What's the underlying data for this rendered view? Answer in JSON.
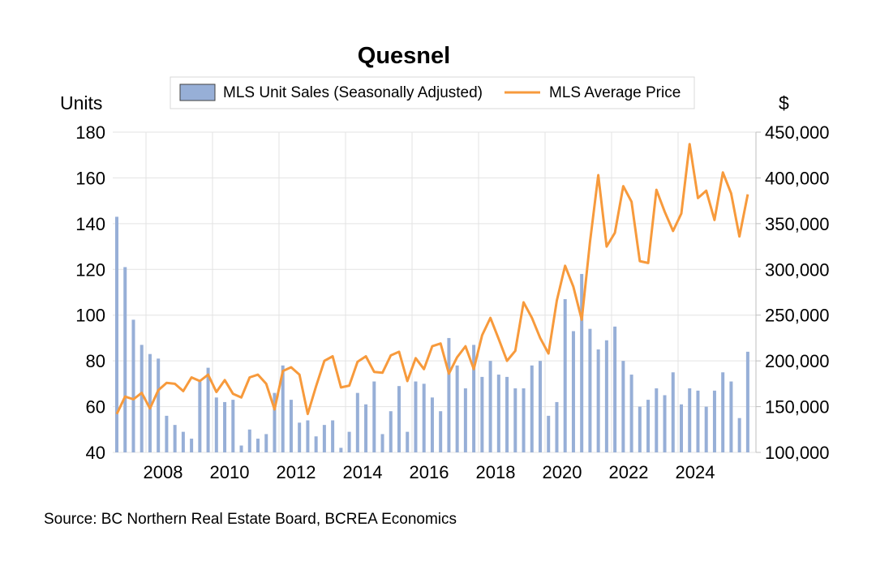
{
  "chart_data": {
    "type": "bar+line",
    "title": "Quesnel",
    "left_axis_label": "Units",
    "right_axis_label": "$",
    "left_ylim": [
      40,
      180
    ],
    "left_ticks": [
      "180",
      "160",
      "140",
      "120",
      "100",
      "80",
      "60",
      "40"
    ],
    "right_ylim": [
      100000,
      450000
    ],
    "right_ticks": [
      "450,000",
      "400,000",
      "350,000",
      "300,000",
      "250,000",
      "200,000",
      "150,000",
      "100,000"
    ],
    "x_tick_labels": [
      "2008",
      "2010",
      "2012",
      "2014",
      "2016",
      "2018",
      "2020",
      "2022",
      "2024"
    ],
    "grid": true,
    "legend": "top-center",
    "series": [
      {
        "name": "MLS Unit Sales (Seasonally Adjusted)",
        "type": "bar",
        "color": "#97AFD7",
        "values": [
          143,
          121,
          98,
          87,
          83,
          81,
          56,
          52,
          49,
          46,
          71,
          77,
          64,
          62,
          63,
          43,
          50,
          46,
          48,
          66,
          78,
          63,
          53,
          54,
          47,
          52,
          54,
          42,
          49,
          66,
          61,
          71,
          48,
          58,
          69,
          49,
          71,
          70,
          64,
          58,
          90,
          78,
          68,
          87,
          73,
          80,
          74,
          73,
          68,
          68,
          78,
          80,
          56,
          62,
          107,
          93,
          118,
          94,
          85,
          89,
          95,
          80,
          74,
          60,
          63,
          68,
          65,
          75,
          61,
          68,
          67,
          60,
          67,
          75,
          71,
          55,
          84
        ]
      },
      {
        "name": "MLS Average Price",
        "type": "line",
        "color": "#F79A3C",
        "values": [
          142000,
          161000,
          158000,
          165000,
          148000,
          168000,
          176000,
          175000,
          167000,
          182000,
          178000,
          185000,
          166000,
          179000,
          164000,
          160000,
          182000,
          185000,
          175000,
          147000,
          189000,
          193000,
          185000,
          142000,
          172000,
          200000,
          205000,
          171000,
          173000,
          199000,
          205000,
          188000,
          187000,
          206000,
          210000,
          178000,
          203000,
          191000,
          216000,
          219000,
          186000,
          204000,
          216000,
          191000,
          228000,
          247000,
          224000,
          200000,
          211000,
          264000,
          247000,
          225000,
          208000,
          266000,
          304000,
          281000,
          245000,
          330000,
          403000,
          325000,
          340000,
          391000,
          374000,
          309000,
          307000,
          387000,
          363000,
          342000,
          361000,
          437000,
          378000,
          386000,
          354000,
          406000,
          383000,
          336000,
          382000
        ]
      }
    ],
    "source": "Source:  BC Northern Real Estate Board, BCREA Economics"
  }
}
